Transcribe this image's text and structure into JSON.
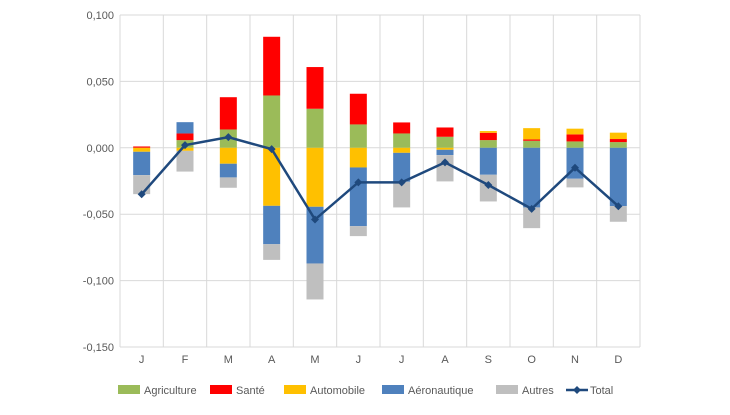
{
  "chart_data": {
    "type": "bar",
    "stacked": true,
    "title": "",
    "xlabel": "",
    "ylabel": "",
    "categories": [
      "J",
      "F",
      "M",
      "A",
      "M",
      "J",
      "J",
      "A",
      "S",
      "O",
      "N",
      "D"
    ],
    "ylim": [
      -0.15,
      0.1
    ],
    "yticks": [
      "0,100",
      "0,050",
      "0,000",
      "-0,050",
      "-0,100",
      "-0,150"
    ],
    "ytick_values": [
      0.1,
      0.05,
      0,
      -0.05,
      -0.1,
      -0.15
    ],
    "grid": true,
    "legend_position": "bottom",
    "series": [
      {
        "name": "Agriculture",
        "color": "#9BBB59",
        "values": [
          0,
          0.0058,
          0.0138,
          0.0394,
          0.0294,
          0.0176,
          0.0108,
          0.0083,
          0.0058,
          0.0053,
          0.0048,
          0.0043
        ]
      },
      {
        "name": "Santé",
        "color": "#FF0000",
        "values": [
          0.001,
          0.005,
          0.0243,
          0.0442,
          0.0314,
          0.0231,
          0.0083,
          0.007,
          0.0055,
          0.001,
          0.0053,
          0.0023
        ]
      },
      {
        "name": "Automobile",
        "color": "#FFC000",
        "values": [
          -0.003,
          -0.0023,
          -0.012,
          -0.0437,
          -0.0444,
          -0.0148,
          -0.0038,
          -0.0015,
          0.0013,
          0.0085,
          0.0043,
          0.0048
        ]
      },
      {
        "name": "Aéronautique",
        "color": "#4F81BD",
        "values": [
          -0.0176,
          0.0085,
          -0.0103,
          -0.0289,
          -0.0427,
          -0.0442,
          -0.0218,
          -0.004,
          -0.0203,
          -0.0449,
          -0.0233,
          -0.0439
        ]
      },
      {
        "name": "Autres",
        "color": "#BFBFBF",
        "values": [
          -0.0143,
          -0.0156,
          -0.0078,
          -0.0118,
          -0.0271,
          -0.0075,
          -0.0193,
          -0.0198,
          -0.0201,
          -0.0156,
          -0.0065,
          -0.0118
        ]
      }
    ],
    "line_series": {
      "name": "Total",
      "color": "#1F497D",
      "type": "line",
      "marker": "diamond",
      "values": [
        -0.035,
        0.002,
        0.008,
        -0.001,
        -0.054,
        -0.026,
        -0.026,
        -0.011,
        -0.028,
        -0.046,
        -0.015,
        -0.044
      ]
    }
  }
}
